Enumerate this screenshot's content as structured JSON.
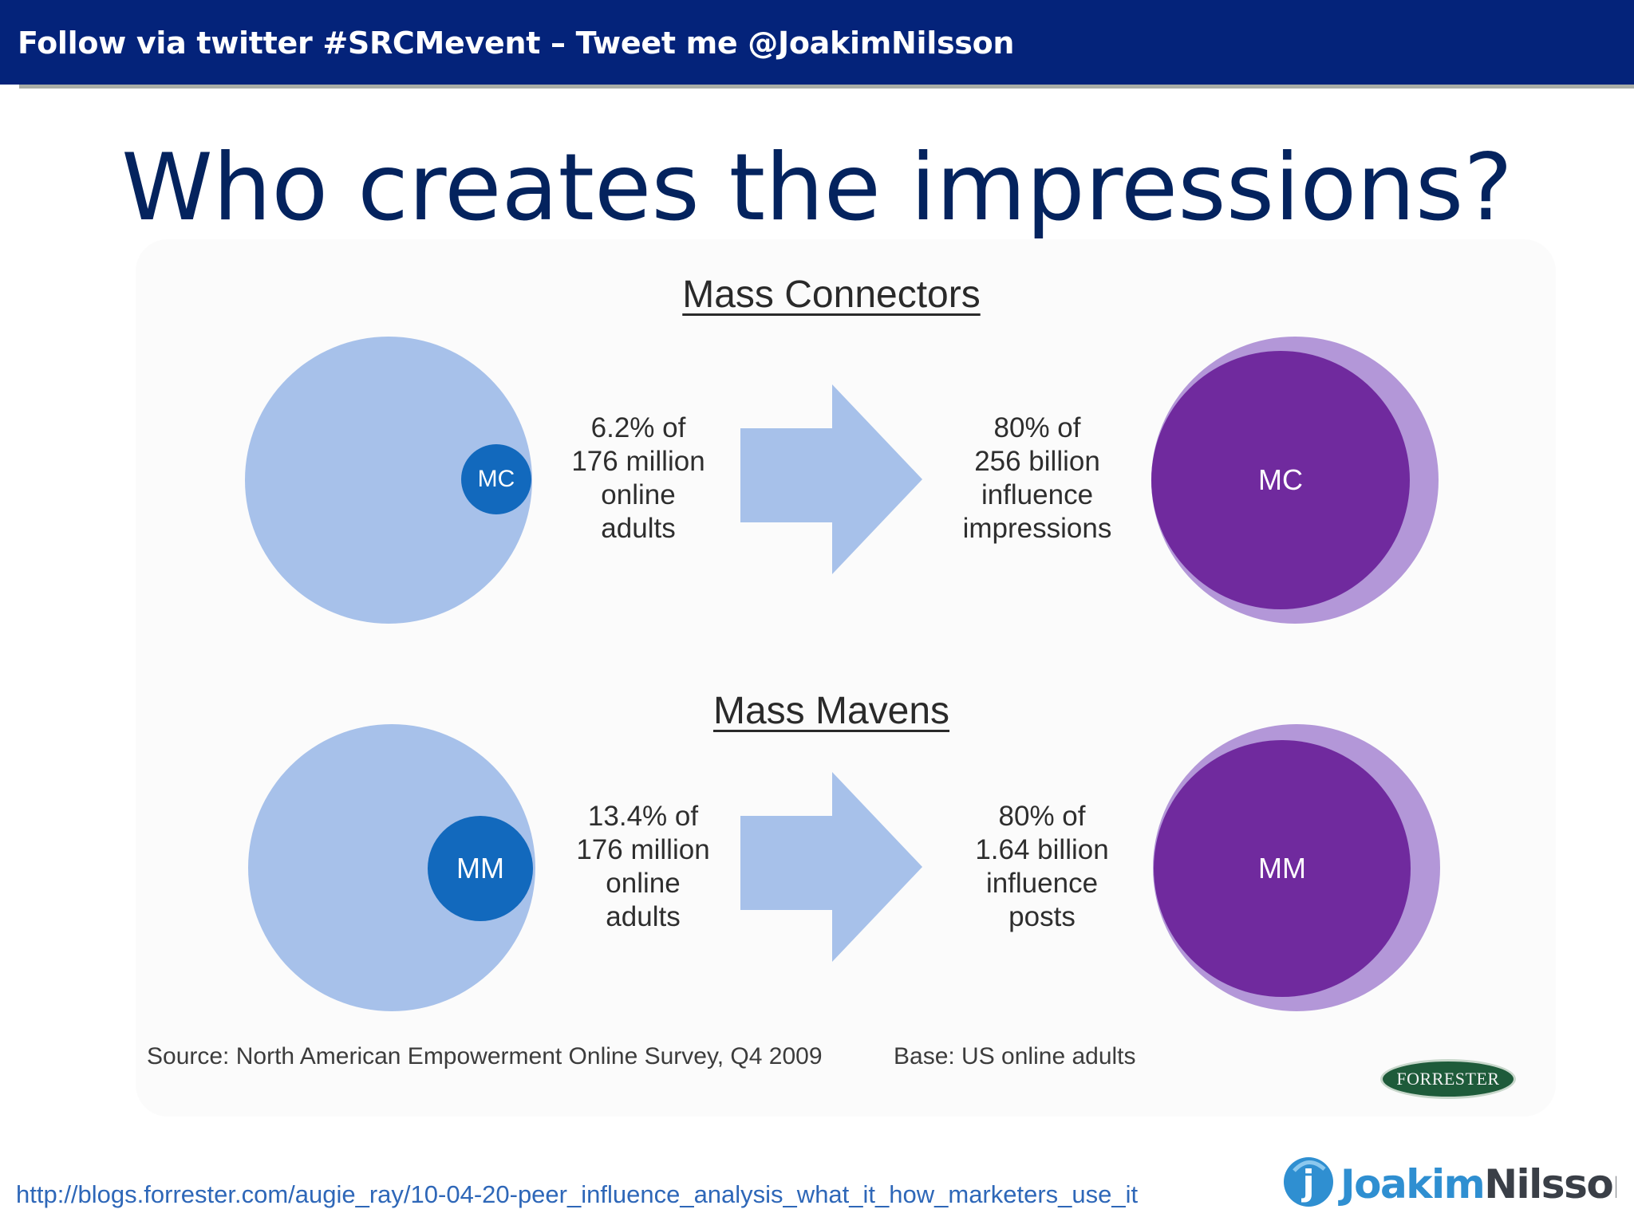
{
  "banner": {
    "text": "Follow via twitter #SRCMevent – Tweet me @JoakimNilsson"
  },
  "slide": {
    "title": "Who creates the impressions?"
  },
  "colors": {
    "banner": "#04237a",
    "title": "#04235e",
    "population_circle": "#a7c1ea",
    "segment_circle": "#1269bd",
    "influence_circle": "#702a9e",
    "influence_halo": "#b397d8",
    "arrow": "#a7c1ea"
  },
  "diagram": {
    "sections": [
      {
        "title": "Mass Connectors",
        "segment_label": "MC",
        "population_stat": [
          "6.2% of",
          "176 million",
          "online",
          "adults"
        ],
        "influence_stat": [
          "80% of",
          "256 billion",
          "influence",
          "impressions"
        ],
        "influence_label": "MC"
      },
      {
        "title": "Mass Mavens",
        "segment_label": "MM",
        "population_stat": [
          "13.4% of",
          "176 million",
          "online",
          "adults"
        ],
        "influence_stat": [
          "80% of",
          "1.64 billion",
          "influence",
          "posts"
        ],
        "influence_label": "MM"
      }
    ],
    "source": "Source: North American Empowerment Online Survey, Q4 2009",
    "base": "Base: US online adults",
    "logo_text": "FORRESTER"
  },
  "footer": {
    "url": "http://blogs.forrester.com/augie_ray/10-04-20-peer_influence_analysis_what_it_how_marketers_use_it",
    "brand_mark": "j",
    "brand_first": "Joakim",
    "brand_last": "Nilsson"
  }
}
